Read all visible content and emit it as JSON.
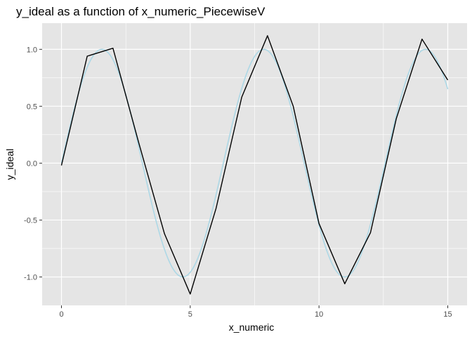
{
  "chart_data": {
    "type": "line",
    "title": "y_ideal as a function of x_numeric_PiecewiseV",
    "xlabel": "x_numeric",
    "ylabel": "y_ideal",
    "xlim": [
      -0.75,
      15.75
    ],
    "ylim": [
      -1.25,
      1.23
    ],
    "x_ticks": [
      0,
      5,
      10,
      15
    ],
    "x_tick_labels": [
      "0",
      "5",
      "10",
      "15"
    ],
    "y_ticks": [
      -1.0,
      -0.5,
      0.0,
      0.5,
      1.0
    ],
    "y_tick_labels": [
      "-1.0",
      "-0.5",
      "0.0",
      "0.5",
      "1.0"
    ],
    "grid": true,
    "background": "#e5e5e5",
    "grid_color": "#ffffff",
    "series": [
      {
        "color": "#add8e6",
        "kind": "smooth",
        "function": "sin",
        "x_range": [
          0,
          15
        ]
      },
      {
        "color": "#000000",
        "kind": "polyline",
        "x": [
          0,
          1,
          2,
          3,
          4,
          5,
          6,
          7,
          8,
          9,
          10,
          11,
          12,
          13,
          14,
          15
        ],
        "y": [
          -0.02,
          0.94,
          1.01,
          0.18,
          -0.62,
          -1.15,
          -0.4,
          0.58,
          1.12,
          0.5,
          -0.53,
          -1.06,
          -0.61,
          0.39,
          1.09,
          0.73
        ]
      }
    ]
  }
}
